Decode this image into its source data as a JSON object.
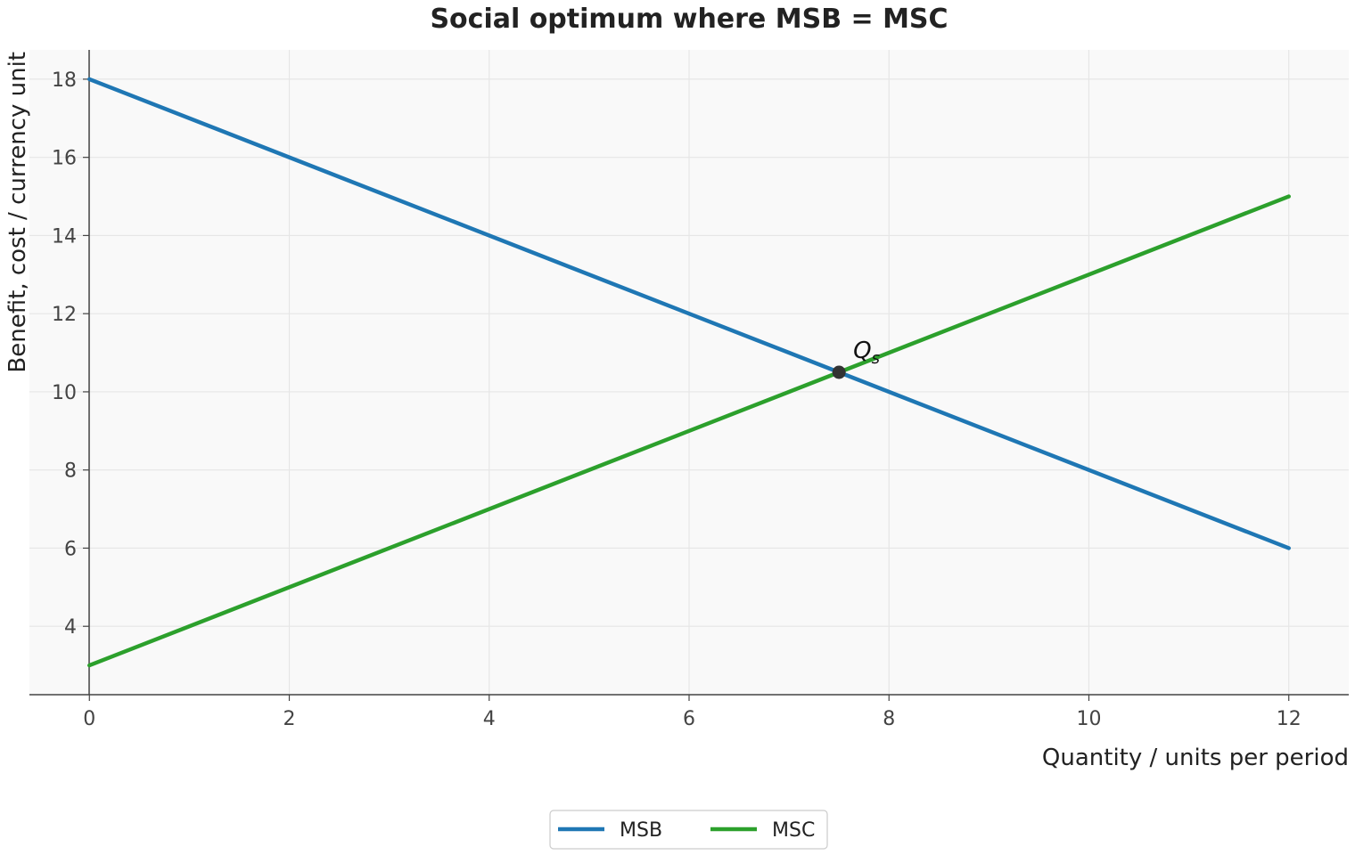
{
  "chart_data": {
    "type": "line",
    "title": "Social optimum where MSB = MSC",
    "xlabel": "Quantity / units per period",
    "ylabel": "Benefit, cost / currency unit",
    "xlim": [
      -0.6,
      12.6
    ],
    "ylim": [
      2.25,
      18.75
    ],
    "xticks": [
      0,
      2,
      4,
      6,
      8,
      10,
      12
    ],
    "yticks": [
      4,
      6,
      8,
      10,
      12,
      14,
      16,
      18
    ],
    "grid": true,
    "legend_position": "bottom-center",
    "series": [
      {
        "name": "MSB",
        "color": "#1f77b4",
        "x": [
          0,
          12
        ],
        "y": [
          18,
          6
        ]
      },
      {
        "name": "MSC",
        "color": "#2ca02c",
        "x": [
          0,
          12
        ],
        "y": [
          3,
          15
        ]
      }
    ],
    "annotations": [
      {
        "label": "Q",
        "subscript": "s",
        "x": 7.5,
        "y": 10.5,
        "marker_color": "#333333"
      }
    ]
  }
}
